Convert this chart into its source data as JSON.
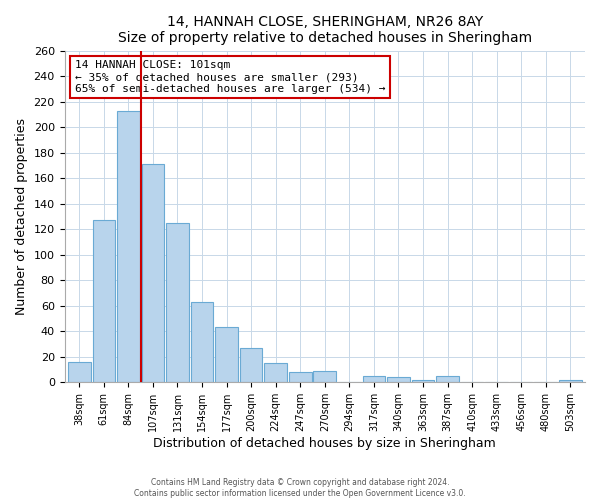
{
  "title": "14, HANNAH CLOSE, SHERINGHAM, NR26 8AY",
  "subtitle": "Size of property relative to detached houses in Sheringham",
  "xlabel": "Distribution of detached houses by size in Sheringham",
  "ylabel": "Number of detached properties",
  "bar_labels": [
    "38sqm",
    "61sqm",
    "84sqm",
    "107sqm",
    "131sqm",
    "154sqm",
    "177sqm",
    "200sqm",
    "224sqm",
    "247sqm",
    "270sqm",
    "294sqm",
    "317sqm",
    "340sqm",
    "363sqm",
    "387sqm",
    "410sqm",
    "433sqm",
    "456sqm",
    "480sqm",
    "503sqm"
  ],
  "bar_values": [
    16,
    127,
    213,
    171,
    125,
    63,
    43,
    27,
    15,
    8,
    9,
    0,
    5,
    4,
    2,
    5,
    0,
    0,
    0,
    0,
    2
  ],
  "bar_color": "#b8d4ec",
  "bar_edge_color": "#6aaad4",
  "vline_color": "#cc0000",
  "annotation_title": "14 HANNAH CLOSE: 101sqm",
  "annotation_line1": "← 35% of detached houses are smaller (293)",
  "annotation_line2": "65% of semi-detached houses are larger (534) →",
  "annotation_box_color": "#ffffff",
  "annotation_box_edge": "#cc0000",
  "ylim": [
    0,
    260
  ],
  "yticks": [
    0,
    20,
    40,
    60,
    80,
    100,
    120,
    140,
    160,
    180,
    200,
    220,
    240,
    260
  ],
  "footer1": "Contains HM Land Registry data © Crown copyright and database right 2024.",
  "footer2": "Contains public sector information licensed under the Open Government Licence v3.0.",
  "bg_color": "#ffffff",
  "grid_color": "#c8d8e8"
}
